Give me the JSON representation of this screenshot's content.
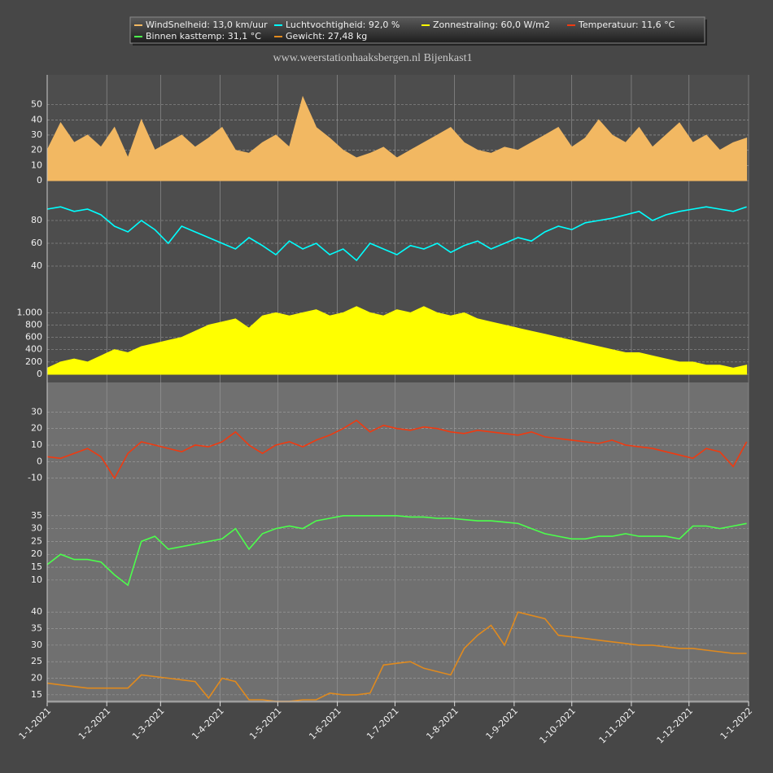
{
  "chart_data": {
    "title": "www.weerstationhaaksbergen.nl Bijenkast1",
    "x": [
      "2021-01-01",
      "2021-01-08",
      "2021-01-15",
      "2021-01-22",
      "2021-01-29",
      "2021-02-05",
      "2021-02-12",
      "2021-02-19",
      "2021-02-26",
      "2021-03-05",
      "2021-03-12",
      "2021-03-19",
      "2021-03-26",
      "2021-04-02",
      "2021-04-09",
      "2021-04-16",
      "2021-04-23",
      "2021-04-30",
      "2021-05-07",
      "2021-05-14",
      "2021-05-21",
      "2021-05-28",
      "2021-06-04",
      "2021-06-11",
      "2021-06-18",
      "2021-06-25",
      "2021-07-02",
      "2021-07-09",
      "2021-07-16",
      "2021-07-23",
      "2021-07-30",
      "2021-08-06",
      "2021-08-13",
      "2021-08-20",
      "2021-08-27",
      "2021-09-03",
      "2021-09-10",
      "2021-09-17",
      "2021-09-24",
      "2021-10-01",
      "2021-10-08",
      "2021-10-15",
      "2021-10-22",
      "2021-10-29",
      "2021-11-05",
      "2021-11-12",
      "2021-11-19",
      "2021-11-26",
      "2021-12-03",
      "2021-12-10",
      "2021-12-17",
      "2021-12-24",
      "2021-12-31"
    ],
    "xlim": [
      "2021-01-01",
      "2022-01-01"
    ],
    "xticks": [
      {
        "value": "2021-01-01",
        "label": "1-1-2021"
      },
      {
        "value": "2021-02-01",
        "label": "1-2-2021"
      },
      {
        "value": "2021-03-01",
        "label": "1-3-2021"
      },
      {
        "value": "2021-04-01",
        "label": "1-4-2021"
      },
      {
        "value": "2021-05-01",
        "label": "1-5-2021"
      },
      {
        "value": "2021-06-01",
        "label": "1-6-2021"
      },
      {
        "value": "2021-07-01",
        "label": "1-7-2021"
      },
      {
        "value": "2021-08-01",
        "label": "1-8-2021"
      },
      {
        "value": "2021-09-01",
        "label": "1-9-2021"
      },
      {
        "value": "2021-10-01",
        "label": "1-10-2021"
      },
      {
        "value": "2021-11-01",
        "label": "1-11-2021"
      },
      {
        "value": "2021-12-01",
        "label": "1-12-2021"
      },
      {
        "value": "2022-01-01",
        "label": "1-1-2022"
      }
    ],
    "grid": true,
    "series": [
      {
        "type": "area",
        "name": "WindSnelheid: 13,0 km/uur",
        "color": "#f2b862",
        "ylim": [
          0,
          68
        ],
        "yticks": [
          0,
          10,
          20,
          30,
          40,
          50
        ],
        "values": [
          20,
          38,
          25,
          30,
          22,
          35,
          15,
          40,
          20,
          25,
          30,
          22,
          28,
          35,
          20,
          18,
          25,
          30,
          22,
          55,
          35,
          28,
          20,
          15,
          18,
          22,
          15,
          20,
          25,
          30,
          35,
          25,
          20,
          18,
          22,
          20,
          25,
          30,
          35,
          22,
          28,
          40,
          30,
          25,
          35,
          22,
          30,
          38,
          25,
          30,
          20,
          25,
          28
        ]
      },
      {
        "type": "line",
        "name": "Luchtvochtigheid: 92,0 %",
        "color": "#00ffff",
        "ylim": [
          30,
          105
        ],
        "yticks": [
          40,
          60,
          80
        ],
        "values": [
          90,
          92,
          88,
          90,
          85,
          75,
          70,
          80,
          72,
          60,
          75,
          70,
          65,
          60,
          55,
          65,
          58,
          50,
          62,
          55,
          60,
          50,
          55,
          45,
          60,
          55,
          50,
          58,
          55,
          60,
          52,
          58,
          62,
          55,
          60,
          65,
          62,
          70,
          75,
          72,
          78,
          80,
          82,
          85,
          88,
          80,
          85,
          88,
          90,
          92,
          90,
          88,
          92
        ]
      },
      {
        "type": "area",
        "name": "Zonnestraling: 60,0 W/m2",
        "color": "#ffff00",
        "ylim": [
          0,
          1190
        ],
        "yticks": [
          0,
          200,
          400,
          600,
          800,
          {
            "value": 1000,
            "label": "1.000"
          }
        ],
        "values": [
          100,
          200,
          250,
          200,
          300,
          400,
          350,
          450,
          500,
          550,
          600,
          700,
          800,
          850,
          900,
          750,
          950,
          1000,
          950,
          1000,
          1050,
          950,
          1000,
          1100,
          1000,
          950,
          1050,
          1000,
          1100,
          1000,
          950,
          1000,
          900,
          850,
          800,
          750,
          700,
          650,
          600,
          550,
          500,
          450,
          400,
          350,
          350,
          300,
          250,
          200,
          200,
          150,
          150,
          100,
          150
        ]
      },
      {
        "type": "line",
        "name": "Temperatuur: 11,6 °C",
        "color": "#f03a10",
        "ylim": [
          -21,
          43
        ],
        "yticks": [
          -10,
          0,
          10,
          20,
          30
        ],
        "values": [
          3,
          2,
          5,
          8,
          3,
          -10,
          5,
          12,
          10,
          8,
          6,
          10,
          9,
          12,
          18,
          10,
          5,
          10,
          12,
          9,
          13,
          16,
          20,
          25,
          18,
          22,
          20,
          19,
          21,
          20,
          18,
          17,
          19,
          18,
          17,
          16,
          18,
          15,
          14,
          13,
          12,
          11,
          13,
          10,
          9,
          8,
          6,
          4,
          2,
          8,
          6,
          -3,
          12
        ]
      },
      {
        "type": "line",
        "name": "Binnen kasttemp: 31,1 °C",
        "color": "#4cff4c",
        "ylim": [
          3,
          40
        ],
        "yticks": [
          10,
          15,
          20,
          25,
          30,
          35
        ],
        "values": [
          16,
          20,
          18,
          18,
          17,
          12,
          8,
          25,
          27,
          22,
          23,
          24,
          25,
          26,
          30,
          22,
          28,
          30,
          31,
          30,
          33,
          34,
          35,
          35,
          35,
          35,
          35,
          34.5,
          34.5,
          34,
          34,
          33.5,
          33,
          33,
          32.5,
          32,
          30,
          28,
          27,
          26,
          26,
          27,
          27,
          28,
          27,
          27,
          27,
          26,
          31,
          31,
          30,
          31,
          32
        ]
      },
      {
        "type": "line",
        "name": "Gewicht: 27,48 kg",
        "color": "#e08a1e",
        "ylim": [
          13,
          43
        ],
        "yticks": [
          15,
          20,
          25,
          30,
          35,
          40
        ],
        "values": [
          18.5,
          18,
          17.5,
          17,
          17,
          17,
          17,
          21,
          20.5,
          20,
          19.5,
          19,
          14,
          20,
          19,
          13.5,
          13.5,
          13,
          13,
          13.5,
          13.5,
          15.5,
          15,
          15,
          15.5,
          24,
          24.5,
          25,
          23,
          22,
          21,
          29,
          33,
          36,
          30,
          40,
          39,
          38,
          33,
          32.5,
          32,
          31.5,
          31,
          30.5,
          30,
          30,
          29.5,
          29,
          29,
          28.5,
          28,
          27.5,
          27.5
        ]
      }
    ]
  }
}
